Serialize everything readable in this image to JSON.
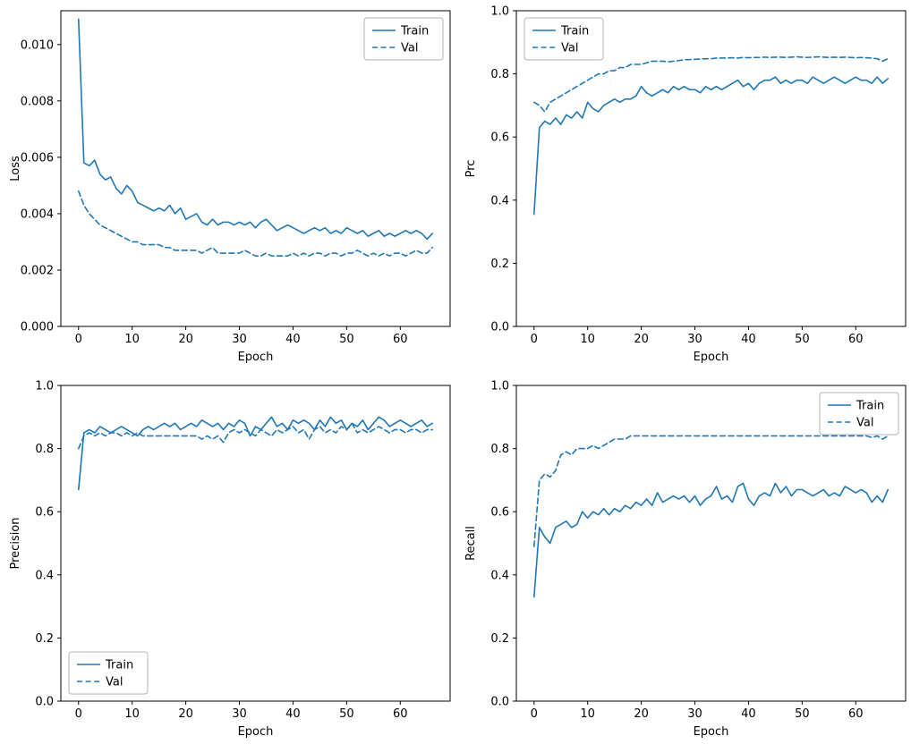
{
  "page": {
    "background": "#ffffff"
  },
  "colors": {
    "line": "#1f77b4",
    "axis": "#000000",
    "legend_border": "#b3b3b3",
    "legend_bg": "#ffffff"
  },
  "legend": {
    "train_label": "Train",
    "val_label": "Val"
  },
  "chart_data": [
    {
      "id": "loss",
      "type": "line",
      "xlabel": "Epoch",
      "ylabel": "Loss",
      "xlim": [
        -3.3,
        69.3
      ],
      "ylim": [
        0,
        0.0112
      ],
      "xticks": [
        0,
        10,
        20,
        30,
        40,
        50,
        60
      ],
      "yticks": [
        0,
        0.002,
        0.004,
        0.006,
        0.008,
        0.01
      ],
      "ytick_labels": [
        "0.000",
        "0.002",
        "0.004",
        "0.006",
        "0.008",
        "0.010"
      ],
      "legend_pos": "upper-right",
      "x_start": 0,
      "x_step": 1,
      "series": [
        {
          "name": "Train",
          "dash": "solid",
          "values": [
            0.0109,
            0.0058,
            0.0057,
            0.0059,
            0.0054,
            0.0052,
            0.0053,
            0.0049,
            0.0047,
            0.005,
            0.0048,
            0.0044,
            0.0043,
            0.0042,
            0.0041,
            0.0042,
            0.0041,
            0.0043,
            0.004,
            0.0042,
            0.0038,
            0.0039,
            0.004,
            0.0037,
            0.0036,
            0.0038,
            0.0036,
            0.0037,
            0.0037,
            0.0036,
            0.0037,
            0.0036,
            0.0037,
            0.0035,
            0.0037,
            0.0038,
            0.0036,
            0.0034,
            0.0035,
            0.0036,
            0.0035,
            0.0034,
            0.0033,
            0.0034,
            0.0035,
            0.0034,
            0.0035,
            0.0033,
            0.0034,
            0.0033,
            0.0035,
            0.0034,
            0.0033,
            0.0034,
            0.0032,
            0.0033,
            0.0034,
            0.0032,
            0.0033,
            0.0032,
            0.0033,
            0.0034,
            0.0033,
            0.0034,
            0.0033,
            0.0031,
            0.0033
          ]
        },
        {
          "name": "Val",
          "dash": "dashed",
          "values": [
            0.0048,
            0.0043,
            0.004,
            0.0038,
            0.0036,
            0.0035,
            0.0034,
            0.0033,
            0.0032,
            0.0031,
            0.003,
            0.003,
            0.0029,
            0.0029,
            0.0029,
            0.0029,
            0.0028,
            0.0028,
            0.0027,
            0.0027,
            0.0027,
            0.0027,
            0.0027,
            0.0026,
            0.0027,
            0.0028,
            0.0026,
            0.0026,
            0.0026,
            0.0026,
            0.0026,
            0.0027,
            0.0026,
            0.0025,
            0.0025,
            0.0026,
            0.0025,
            0.0025,
            0.0025,
            0.0025,
            0.0026,
            0.0025,
            0.0026,
            0.0025,
            0.0026,
            0.0026,
            0.0025,
            0.0026,
            0.0026,
            0.0025,
            0.0026,
            0.0026,
            0.0027,
            0.0026,
            0.0025,
            0.0026,
            0.0025,
            0.0026,
            0.0025,
            0.0026,
            0.0026,
            0.0025,
            0.0026,
            0.0027,
            0.0026,
            0.0026,
            0.0028
          ]
        }
      ]
    },
    {
      "id": "prc",
      "type": "line",
      "xlabel": "Epoch",
      "ylabel": "Prc",
      "xlim": [
        -3.3,
        69.3
      ],
      "ylim": [
        0,
        1.0
      ],
      "xticks": [
        0,
        10,
        20,
        30,
        40,
        50,
        60
      ],
      "yticks": [
        0,
        0.2,
        0.4,
        0.6,
        0.8,
        1.0
      ],
      "ytick_labels": [
        "0.0",
        "0.2",
        "0.4",
        "0.6",
        "0.8",
        "1.0"
      ],
      "legend_pos": "upper-left",
      "x_start": 0,
      "x_step": 1,
      "series": [
        {
          "name": "Train",
          "dash": "solid",
          "values": [
            0.355,
            0.63,
            0.65,
            0.64,
            0.66,
            0.64,
            0.67,
            0.66,
            0.68,
            0.66,
            0.71,
            0.69,
            0.68,
            0.7,
            0.71,
            0.72,
            0.71,
            0.72,
            0.72,
            0.73,
            0.76,
            0.74,
            0.73,
            0.74,
            0.75,
            0.74,
            0.76,
            0.75,
            0.76,
            0.75,
            0.75,
            0.74,
            0.76,
            0.75,
            0.76,
            0.75,
            0.76,
            0.77,
            0.78,
            0.76,
            0.77,
            0.75,
            0.77,
            0.78,
            0.78,
            0.79,
            0.77,
            0.78,
            0.77,
            0.78,
            0.78,
            0.77,
            0.79,
            0.78,
            0.77,
            0.78,
            0.79,
            0.78,
            0.77,
            0.78,
            0.79,
            0.78,
            0.78,
            0.77,
            0.79,
            0.77,
            0.785
          ]
        },
        {
          "name": "Val",
          "dash": "dashed",
          "values": [
            0.71,
            0.7,
            0.68,
            0.71,
            0.72,
            0.73,
            0.74,
            0.75,
            0.76,
            0.77,
            0.78,
            0.79,
            0.8,
            0.8,
            0.81,
            0.81,
            0.82,
            0.82,
            0.83,
            0.83,
            0.83,
            0.835,
            0.84,
            0.84,
            0.84,
            0.838,
            0.84,
            0.842,
            0.845,
            0.845,
            0.846,
            0.847,
            0.848,
            0.848,
            0.85,
            0.85,
            0.85,
            0.851,
            0.85,
            0.852,
            0.851,
            0.852,
            0.852,
            0.853,
            0.852,
            0.853,
            0.853,
            0.852,
            0.853,
            0.854,
            0.853,
            0.852,
            0.853,
            0.854,
            0.853,
            0.852,
            0.853,
            0.852,
            0.853,
            0.852,
            0.851,
            0.852,
            0.851,
            0.85,
            0.848,
            0.84,
            0.848
          ]
        }
      ]
    },
    {
      "id": "precision",
      "type": "line",
      "xlabel": "Epoch",
      "ylabel": "Precision",
      "xlim": [
        -3.3,
        69.3
      ],
      "ylim": [
        0,
        1.0
      ],
      "xticks": [
        0,
        10,
        20,
        30,
        40,
        50,
        60
      ],
      "yticks": [
        0,
        0.2,
        0.4,
        0.6,
        0.8,
        1.0
      ],
      "ytick_labels": [
        "0.0",
        "0.2",
        "0.4",
        "0.6",
        "0.8",
        "1.0"
      ],
      "legend_pos": "lower-left",
      "x_start": 0,
      "x_step": 1,
      "series": [
        {
          "name": "Train",
          "dash": "solid",
          "values": [
            0.67,
            0.85,
            0.86,
            0.85,
            0.87,
            0.86,
            0.85,
            0.86,
            0.87,
            0.86,
            0.85,
            0.84,
            0.86,
            0.87,
            0.86,
            0.87,
            0.88,
            0.87,
            0.88,
            0.86,
            0.87,
            0.88,
            0.87,
            0.89,
            0.88,
            0.87,
            0.88,
            0.86,
            0.88,
            0.87,
            0.89,
            0.88,
            0.84,
            0.87,
            0.86,
            0.88,
            0.9,
            0.87,
            0.88,
            0.86,
            0.89,
            0.88,
            0.89,
            0.88,
            0.86,
            0.89,
            0.87,
            0.9,
            0.88,
            0.89,
            0.86,
            0.88,
            0.87,
            0.89,
            0.86,
            0.88,
            0.9,
            0.89,
            0.87,
            0.88,
            0.89,
            0.88,
            0.87,
            0.88,
            0.89,
            0.87,
            0.88
          ]
        },
        {
          "name": "Val",
          "dash": "dashed",
          "values": [
            0.8,
            0.84,
            0.85,
            0.84,
            0.85,
            0.84,
            0.85,
            0.85,
            0.84,
            0.85,
            0.84,
            0.85,
            0.84,
            0.84,
            0.84,
            0.84,
            0.84,
            0.84,
            0.84,
            0.84,
            0.84,
            0.84,
            0.84,
            0.83,
            0.84,
            0.83,
            0.84,
            0.82,
            0.85,
            0.86,
            0.85,
            0.86,
            0.85,
            0.84,
            0.86,
            0.85,
            0.84,
            0.86,
            0.85,
            0.86,
            0.87,
            0.85,
            0.86,
            0.83,
            0.86,
            0.87,
            0.85,
            0.86,
            0.85,
            0.87,
            0.86,
            0.88,
            0.85,
            0.86,
            0.85,
            0.86,
            0.87,
            0.86,
            0.85,
            0.86,
            0.86,
            0.85,
            0.86,
            0.86,
            0.85,
            0.86,
            0.86
          ]
        }
      ]
    },
    {
      "id": "recall",
      "type": "line",
      "xlabel": "Epoch",
      "ylabel": "Recall",
      "xlim": [
        -3.3,
        69.3
      ],
      "ylim": [
        0,
        1.0
      ],
      "xticks": [
        0,
        10,
        20,
        30,
        40,
        50,
        60
      ],
      "yticks": [
        0,
        0.2,
        0.4,
        0.6,
        0.8,
        1.0
      ],
      "ytick_labels": [
        "0.0",
        "0.2",
        "0.4",
        "0.6",
        "0.8",
        "1.0"
      ],
      "legend_pos": "upper-right",
      "x_start": 0,
      "x_step": 1,
      "series": [
        {
          "name": "Train",
          "dash": "solid",
          "values": [
            0.33,
            0.55,
            0.52,
            0.5,
            0.55,
            0.56,
            0.57,
            0.55,
            0.56,
            0.6,
            0.58,
            0.6,
            0.59,
            0.61,
            0.59,
            0.61,
            0.6,
            0.62,
            0.61,
            0.63,
            0.62,
            0.64,
            0.62,
            0.66,
            0.63,
            0.64,
            0.65,
            0.64,
            0.65,
            0.63,
            0.65,
            0.62,
            0.64,
            0.65,
            0.68,
            0.64,
            0.65,
            0.63,
            0.68,
            0.69,
            0.64,
            0.62,
            0.65,
            0.66,
            0.65,
            0.69,
            0.66,
            0.68,
            0.65,
            0.67,
            0.67,
            0.66,
            0.65,
            0.66,
            0.67,
            0.65,
            0.66,
            0.65,
            0.68,
            0.67,
            0.66,
            0.67,
            0.66,
            0.63,
            0.65,
            0.63,
            0.67
          ]
        },
        {
          "name": "Val",
          "dash": "dashed",
          "values": [
            0.49,
            0.7,
            0.72,
            0.71,
            0.73,
            0.78,
            0.79,
            0.78,
            0.8,
            0.8,
            0.8,
            0.81,
            0.8,
            0.81,
            0.82,
            0.83,
            0.83,
            0.83,
            0.84,
            0.84,
            0.84,
            0.84,
            0.84,
            0.84,
            0.84,
            0.84,
            0.84,
            0.84,
            0.84,
            0.84,
            0.84,
            0.84,
            0.84,
            0.84,
            0.84,
            0.84,
            0.84,
            0.84,
            0.84,
            0.84,
            0.84,
            0.84,
            0.84,
            0.84,
            0.84,
            0.84,
            0.84,
            0.84,
            0.84,
            0.84,
            0.84,
            0.84,
            0.84,
            0.84,
            0.84,
            0.84,
            0.84,
            0.84,
            0.84,
            0.84,
            0.84,
            0.84,
            0.84,
            0.835,
            0.84,
            0.83,
            0.84
          ]
        }
      ]
    }
  ]
}
